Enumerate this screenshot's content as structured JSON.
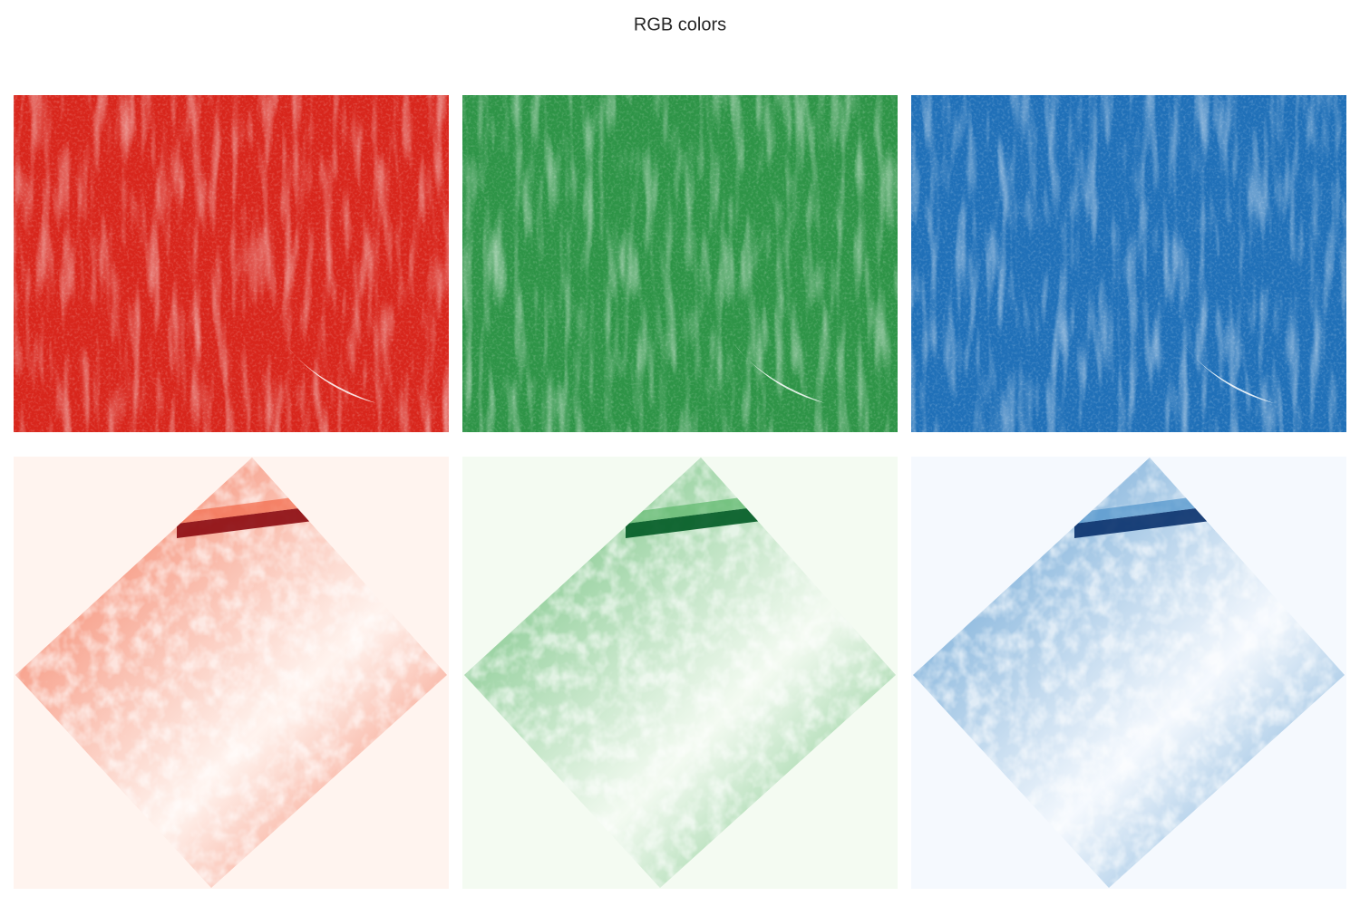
{
  "title": "RGB colors"
}
